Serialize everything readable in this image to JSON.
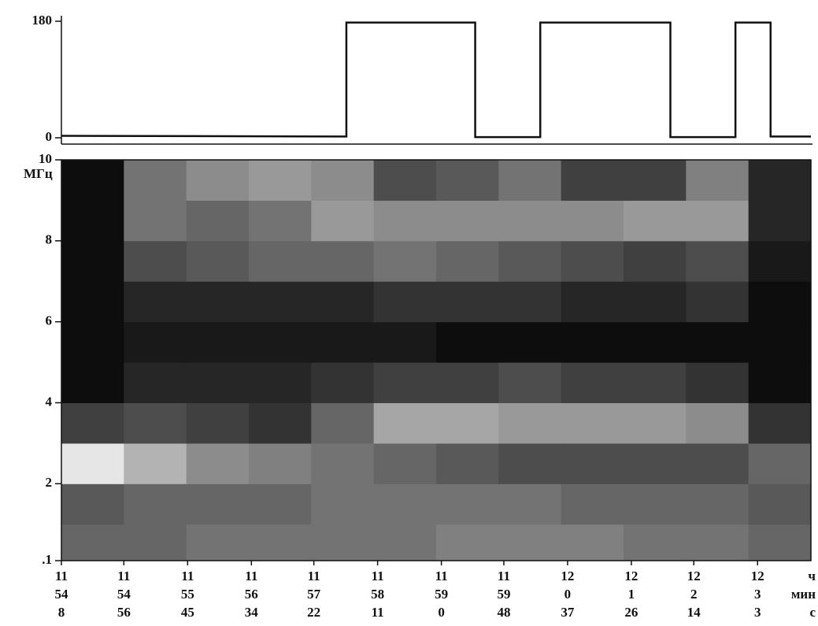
{
  "chart_data": [
    {
      "type": "line",
      "x": [
        42848,
        43067,
        43067,
        43166,
        43166,
        43216,
        43216,
        43316,
        43316,
        43366,
        43366,
        43393,
        43393,
        43424
      ],
      "series": [
        {
          "color": "#111111",
          "values": [
            3,
            2,
            178,
            178,
            1,
            1,
            178,
            178,
            1,
            1,
            178,
            178,
            2,
            2
          ]
        }
      ],
      "xlim": [
        42848,
        43424
      ],
      "ylim": [
        0,
        180
      ],
      "yticks": [
        0,
        180
      ]
    },
    {
      "type": "heatmap",
      "time_bins": [
        42848,
        42896,
        42944,
        42992,
        43040,
        43088,
        43136,
        43184,
        43232,
        43280,
        43328,
        43376,
        43424
      ],
      "freq_bins": [
        0.1,
        1,
        2,
        3,
        4,
        5,
        6,
        7,
        8,
        9,
        10
      ],
      "colormap": "gray_r",
      "values": [
        [
          0.6,
          0.6,
          0.55,
          0.55,
          0.55,
          0.55,
          0.5,
          0.5,
          0.5,
          0.55,
          0.55,
          0.6
        ],
        [
          0.65,
          0.6,
          0.6,
          0.6,
          0.55,
          0.55,
          0.55,
          0.55,
          0.6,
          0.6,
          0.6,
          0.65
        ],
        [
          0.1,
          0.3,
          0.45,
          0.5,
          0.55,
          0.6,
          0.65,
          0.7,
          0.7,
          0.7,
          0.7,
          0.6
        ],
        [
          0.75,
          0.7,
          0.75,
          0.8,
          0.6,
          0.35,
          0.35,
          0.4,
          0.4,
          0.4,
          0.45,
          0.8
        ],
        [
          0.95,
          0.85,
          0.85,
          0.85,
          0.8,
          0.75,
          0.75,
          0.7,
          0.75,
          0.75,
          0.8,
          0.95
        ],
        [
          0.95,
          0.9,
          0.9,
          0.9,
          0.9,
          0.9,
          0.95,
          0.95,
          0.95,
          0.95,
          0.95,
          0.95
        ],
        [
          0.95,
          0.85,
          0.85,
          0.85,
          0.85,
          0.8,
          0.8,
          0.8,
          0.85,
          0.85,
          0.8,
          0.95
        ],
        [
          0.95,
          0.7,
          0.65,
          0.6,
          0.6,
          0.55,
          0.6,
          0.65,
          0.7,
          0.75,
          0.7,
          0.9
        ],
        [
          0.95,
          0.55,
          0.6,
          0.55,
          0.4,
          0.45,
          0.45,
          0.45,
          0.45,
          0.4,
          0.4,
          0.85
        ],
        [
          0.95,
          0.55,
          0.45,
          0.4,
          0.45,
          0.7,
          0.65,
          0.55,
          0.75,
          0.75,
          0.5,
          0.85
        ]
      ],
      "xlim": [
        42848,
        43424
      ],
      "ylim": [
        0.1,
        10
      ],
      "yticks": [
        10,
        8,
        6,
        4,
        2,
        {
          "value": 0.1,
          "label": ".1"
        }
      ],
      "y_unit": "МГц",
      "xticks": [
        {
          "value": 42848,
          "label": [
            "11",
            "54",
            "8"
          ]
        },
        {
          "value": 42896,
          "label": [
            "11",
            "54",
            "56"
          ]
        },
        {
          "value": 42945,
          "label": [
            "11",
            "55",
            "45"
          ]
        },
        {
          "value": 42994,
          "label": [
            "11",
            "56",
            "34"
          ]
        },
        {
          "value": 43042,
          "label": [
            "11",
            "57",
            "22"
          ]
        },
        {
          "value": 43091,
          "label": [
            "11",
            "58",
            "11"
          ]
        },
        {
          "value": 43140,
          "label": [
            "11",
            "59",
            "0"
          ]
        },
        {
          "value": 43188,
          "label": [
            "11",
            "59",
            "48"
          ]
        },
        {
          "value": 43237,
          "label": [
            "12",
            "0",
            "37"
          ]
        },
        {
          "value": 43286,
          "label": [
            "12",
            "1",
            "26"
          ]
        },
        {
          "value": 43334,
          "label": [
            "12",
            "2",
            "14"
          ]
        },
        {
          "value": 43383,
          "label": [
            "12",
            "3",
            "3"
          ]
        }
      ],
      "x_units": [
        "ч",
        "мин",
        "с"
      ]
    }
  ]
}
